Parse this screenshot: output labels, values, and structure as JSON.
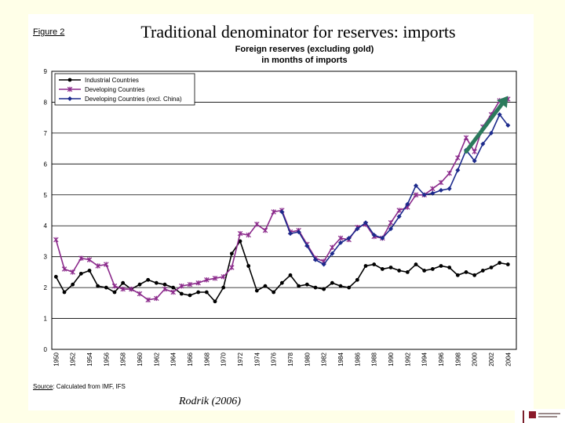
{
  "slide": {
    "title": "Traditional denominator for reserves: imports",
    "figure_label": "Figure 2",
    "source_prefix": "Source",
    "source_text": ": Calculated from IMF, IFS",
    "citation": "Rodrik (2006)"
  },
  "chart_data": {
    "type": "line",
    "title": "Foreign reserves (excluding gold)",
    "subtitle": "in months of imports",
    "xlabel": "",
    "ylabel": "",
    "ylim": [
      0,
      9
    ],
    "yticks": [
      0,
      1,
      2,
      3,
      4,
      5,
      6,
      7,
      8,
      9
    ],
    "xticks": [
      "1950",
      "1952",
      "1954",
      "1956",
      "1958",
      "1960",
      "1962",
      "1964",
      "1966",
      "1968",
      "1970",
      "1972",
      "1974",
      "1976",
      "1978",
      "1980",
      "1982",
      "1984",
      "1986",
      "1988",
      "1990",
      "1992",
      "1994",
      "1996",
      "1998",
      "2000",
      "2002",
      "2004"
    ],
    "grid": true,
    "legend": "top-left",
    "x": [
      1950,
      1951,
      1952,
      1953,
      1954,
      1955,
      1956,
      1957,
      1958,
      1959,
      1960,
      1961,
      1962,
      1963,
      1964,
      1965,
      1966,
      1967,
      1968,
      1969,
      1970,
      1971,
      1972,
      1973,
      1974,
      1975,
      1976,
      1977,
      1978,
      1979,
      1980,
      1981,
      1982,
      1983,
      1984,
      1985,
      1986,
      1987,
      1988,
      1989,
      1990,
      1991,
      1992,
      1993,
      1994,
      1995,
      1996,
      1997,
      1998,
      1999,
      2000,
      2001,
      2002,
      2003,
      2004
    ],
    "series": [
      {
        "name": "Industrial Countries",
        "color": "#000000",
        "marker": "circle",
        "values": [
          2.35,
          1.85,
          2.1,
          2.45,
          2.55,
          2.05,
          2.0,
          1.85,
          2.15,
          1.95,
          2.1,
          2.25,
          2.15,
          2.1,
          2.0,
          1.8,
          1.75,
          1.85,
          1.85,
          1.55,
          2.0,
          3.1,
          3.5,
          2.7,
          1.9,
          2.05,
          1.85,
          2.15,
          2.4,
          2.05,
          2.1,
          2.0,
          1.95,
          2.15,
          2.05,
          2.0,
          2.25,
          2.7,
          2.75,
          2.6,
          2.65,
          2.55,
          2.5,
          2.75,
          2.55,
          2.6,
          2.7,
          2.65,
          2.4,
          2.5,
          2.4,
          2.55,
          2.65,
          2.8,
          2.75
        ]
      },
      {
        "name": "Developing Countries",
        "color": "#8b2a8b",
        "marker": "x",
        "values": [
          3.55,
          2.6,
          2.5,
          2.95,
          2.9,
          2.7,
          2.75,
          2.05,
          1.95,
          1.95,
          1.8,
          1.6,
          1.65,
          1.95,
          1.85,
          2.05,
          2.1,
          2.15,
          2.25,
          2.3,
          2.35,
          2.65,
          3.75,
          3.7,
          4.05,
          3.85,
          4.45,
          4.5,
          3.8,
          3.85,
          3.4,
          2.95,
          2.85,
          3.3,
          3.6,
          3.55,
          3.95,
          4.05,
          3.65,
          3.6,
          4.1,
          4.5,
          4.6,
          5.0,
          5.0,
          5.2,
          5.4,
          5.7,
          6.2,
          6.85,
          6.4,
          7.2,
          7.6,
          8.05,
          8.1
        ]
      },
      {
        "name": "Developing Countries (excl. China)",
        "color": "#1c2a8c",
        "marker": "diamond",
        "values": [
          null,
          null,
          null,
          null,
          null,
          null,
          null,
          null,
          null,
          null,
          null,
          null,
          null,
          null,
          null,
          null,
          null,
          null,
          null,
          null,
          null,
          null,
          null,
          null,
          null,
          null,
          null,
          4.45,
          3.75,
          3.8,
          3.35,
          2.9,
          2.75,
          3.1,
          3.45,
          3.6,
          3.9,
          4.1,
          3.7,
          3.6,
          3.9,
          4.3,
          4.7,
          5.3,
          5.0,
          5.05,
          5.15,
          5.2,
          5.8,
          6.45,
          6.1,
          6.65,
          7.0,
          7.6,
          7.25
        ]
      }
    ],
    "annotation": {
      "type": "arrow",
      "color": "#2b7a5c",
      "from_x": 1999,
      "from_y": 6.4,
      "to_x": 2004,
      "to_y": 8.2
    }
  }
}
